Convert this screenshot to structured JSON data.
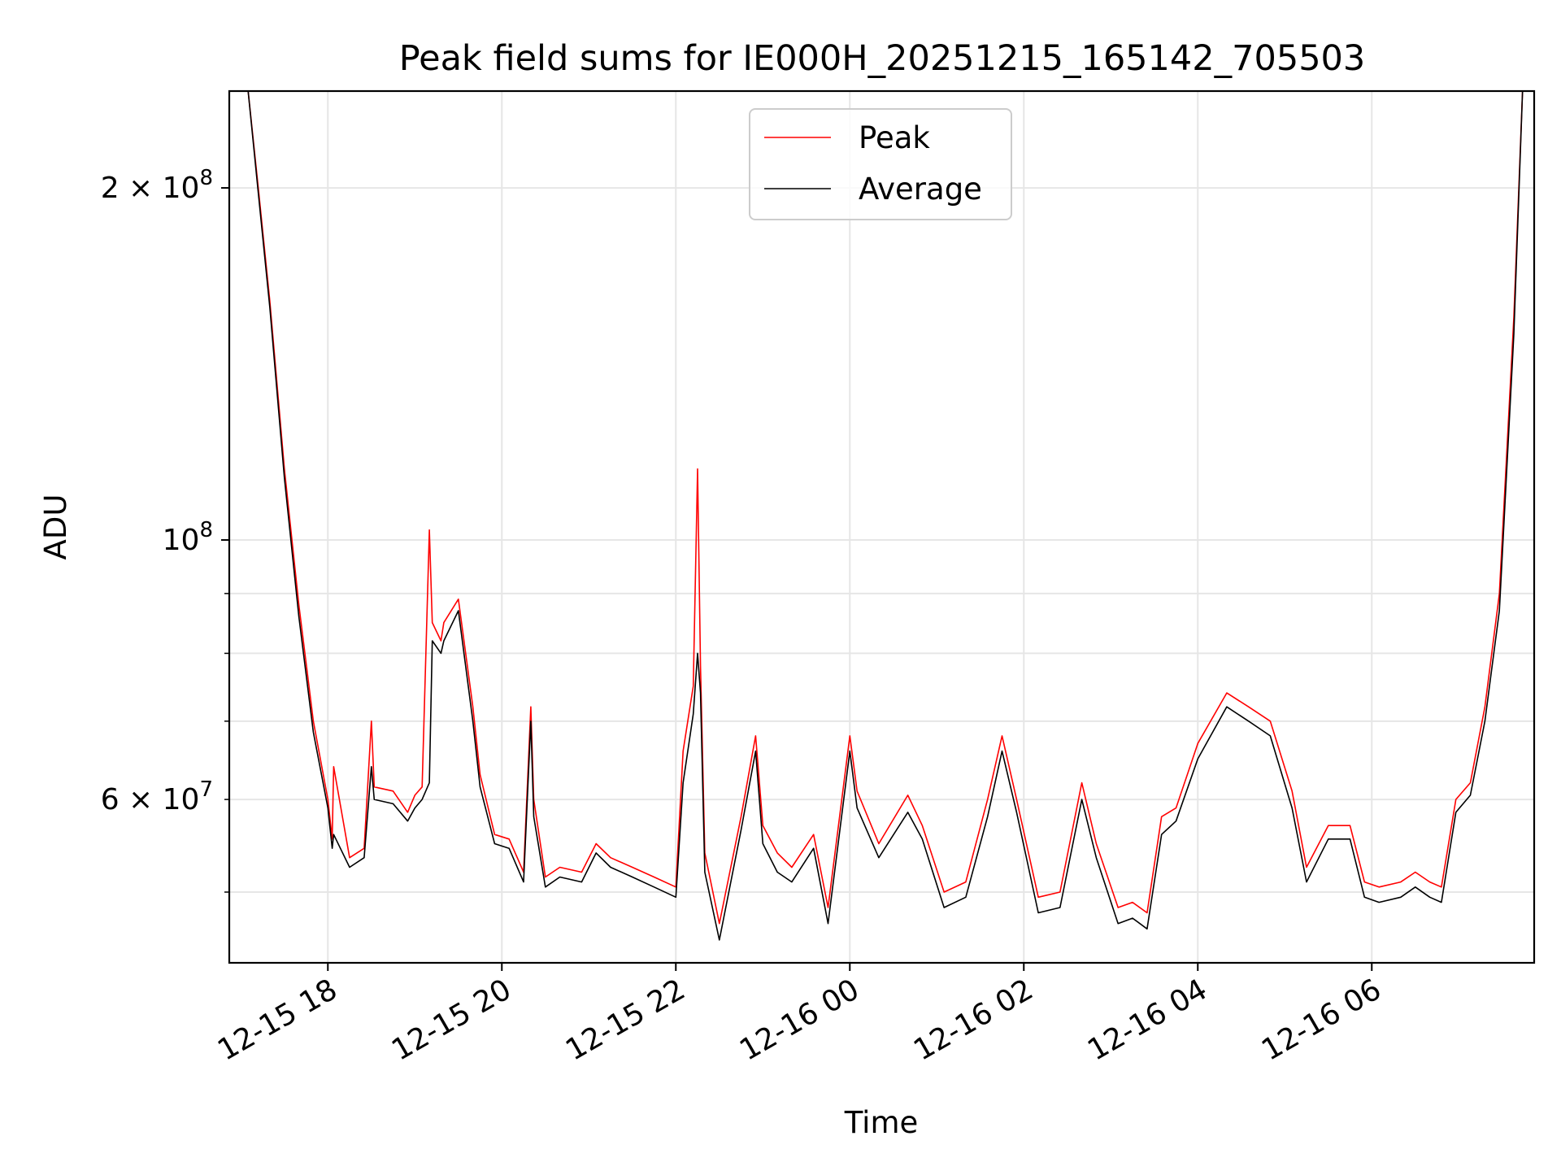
{
  "chart_data": {
    "type": "line",
    "title": "Peak field sums for IE000H_20251215_165142_705503",
    "xlabel": "Time",
    "ylabel": "ADU",
    "y_scale": "log",
    "ylim": [
      43500000,
      242000000
    ],
    "xlim": [
      "2025-12-15 16:52",
      "2025-12-16 07:52"
    ],
    "grid": true,
    "legend_position": "top-center",
    "x_ticks": [
      "12-15 18",
      "12-15 20",
      "12-15 22",
      "12-16 00",
      "12-16 02",
      "12-16 04",
      "12-16 06"
    ],
    "y_ticks_major": [
      {
        "value": 100000000,
        "label_base": "10",
        "label_exp": "8",
        "label_mantissa": ""
      },
      {
        "value": 200000000,
        "label_base": "10",
        "label_exp": "8",
        "label_mantissa": "2 × "
      }
    ],
    "y_ticks_minor": [
      {
        "value": 50000000,
        "label_base": "",
        "label_exp": "",
        "label_mantissa": ""
      },
      {
        "value": 60000000,
        "label_base": "10",
        "label_exp": "7",
        "label_mantissa": "6 × "
      },
      {
        "value": 70000000,
        "label_base": "",
        "label_exp": "",
        "label_mantissa": ""
      },
      {
        "value": 80000000,
        "label_base": "",
        "label_exp": "",
        "label_mantissa": ""
      },
      {
        "value": 90000000,
        "label_base": "",
        "label_exp": "",
        "label_mantissa": ""
      }
    ],
    "series": [
      {
        "name": "Peak",
        "color": "#ff0000",
        "x": [
          "2025-12-15 17:05",
          "2025-12-15 17:12",
          "2025-12-15 17:20",
          "2025-12-15 17:30",
          "2025-12-15 17:40",
          "2025-12-15 17:50",
          "2025-12-15 18:00",
          "2025-12-15 18:03",
          "2025-12-15 18:04",
          "2025-12-15 18:15",
          "2025-12-15 18:25",
          "2025-12-15 18:30",
          "2025-12-15 18:32",
          "2025-12-15 18:45",
          "2025-12-15 18:55",
          "2025-12-15 19:00",
          "2025-12-15 19:05",
          "2025-12-15 19:10",
          "2025-12-15 19:12",
          "2025-12-15 19:18",
          "2025-12-15 19:20",
          "2025-12-15 19:30",
          "2025-12-15 19:40",
          "2025-12-15 19:45",
          "2025-12-15 19:55",
          "2025-12-15 20:05",
          "2025-12-15 20:15",
          "2025-12-15 20:20",
          "2025-12-15 20:22",
          "2025-12-15 20:30",
          "2025-12-15 20:40",
          "2025-12-15 20:55",
          "2025-12-15 21:05",
          "2025-12-15 21:15",
          "2025-12-15 21:30",
          "2025-12-15 21:45",
          "2025-12-15 22:00",
          "2025-12-15 22:05",
          "2025-12-15 22:12",
          "2025-12-15 22:15",
          "2025-12-15 22:17",
          "2025-12-15 22:20",
          "2025-12-15 22:30",
          "2025-12-15 22:45",
          "2025-12-15 22:55",
          "2025-12-15 23:00",
          "2025-12-15 23:10",
          "2025-12-15 23:20",
          "2025-12-15 23:35",
          "2025-12-15 23:45",
          "2025-12-16 00:00",
          "2025-12-16 00:05",
          "2025-12-16 00:20",
          "2025-12-16 00:40",
          "2025-12-16 00:50",
          "2025-12-16 01:05",
          "2025-12-16 01:20",
          "2025-12-16 01:35",
          "2025-12-16 01:45",
          "2025-12-16 01:55",
          "2025-12-16 02:10",
          "2025-12-16 02:25",
          "2025-12-16 02:40",
          "2025-12-16 02:50",
          "2025-12-16 03:05",
          "2025-12-16 03:15",
          "2025-12-16 03:25",
          "2025-12-16 03:35",
          "2025-12-16 03:45",
          "2025-12-16 04:00",
          "2025-12-16 04:20",
          "2025-12-16 04:35",
          "2025-12-16 04:50",
          "2025-12-16 05:05",
          "2025-12-16 05:15",
          "2025-12-16 05:30",
          "2025-12-16 05:45",
          "2025-12-16 05:55",
          "2025-12-16 06:05",
          "2025-12-16 06:20",
          "2025-12-16 06:30",
          "2025-12-16 06:40",
          "2025-12-16 06:48",
          "2025-12-16 06:58",
          "2025-12-16 07:08",
          "2025-12-16 07:18",
          "2025-12-16 07:28",
          "2025-12-16 07:38",
          "2025-12-16 07:44"
        ],
        "y": [
          242000000,
          200000000,
          160000000,
          115000000,
          88000000,
          70000000,
          60000000,
          55500000,
          64000000,
          53500000,
          54500000,
          70000000,
          61500000,
          61000000,
          58500000,
          60500000,
          61500000,
          102000000,
          85000000,
          82000000,
          85000000,
          89000000,
          72000000,
          63000000,
          56000000,
          55500000,
          52000000,
          72000000,
          60000000,
          51500000,
          52500000,
          52000000,
          55000000,
          53500000,
          52500000,
          51500000,
          50500000,
          66000000,
          75000000,
          115000000,
          78000000,
          54000000,
          47000000,
          58000000,
          68000000,
          57000000,
          54000000,
          52500000,
          56000000,
          48500000,
          68000000,
          61000000,
          55000000,
          60500000,
          57000000,
          50000000,
          51000000,
          60000000,
          68000000,
          60000000,
          49500000,
          50000000,
          62000000,
          55000000,
          48500000,
          49000000,
          48000000,
          58000000,
          59000000,
          67000000,
          74000000,
          72000000,
          70000000,
          61000000,
          52500000,
          57000000,
          57000000,
          51000000,
          50500000,
          51000000,
          52000000,
          51000000,
          50500000,
          60000000,
          62000000,
          72000000,
          90000000,
          155000000,
          242000000
        ]
      },
      {
        "name": "Average",
        "color": "#000000",
        "x": [
          "2025-12-15 17:05",
          "2025-12-15 17:12",
          "2025-12-15 17:20",
          "2025-12-15 17:30",
          "2025-12-15 17:40",
          "2025-12-15 17:50",
          "2025-12-15 18:00",
          "2025-12-15 18:03",
          "2025-12-15 18:04",
          "2025-12-15 18:15",
          "2025-12-15 18:25",
          "2025-12-15 18:30",
          "2025-12-15 18:32",
          "2025-12-15 18:45",
          "2025-12-15 18:55",
          "2025-12-15 19:00",
          "2025-12-15 19:05",
          "2025-12-15 19:10",
          "2025-12-15 19:12",
          "2025-12-15 19:18",
          "2025-12-15 19:20",
          "2025-12-15 19:30",
          "2025-12-15 19:40",
          "2025-12-15 19:45",
          "2025-12-15 19:55",
          "2025-12-15 20:05",
          "2025-12-15 20:15",
          "2025-12-15 20:20",
          "2025-12-15 20:22",
          "2025-12-15 20:30",
          "2025-12-15 20:40",
          "2025-12-15 20:55",
          "2025-12-15 21:05",
          "2025-12-15 21:15",
          "2025-12-15 21:30",
          "2025-12-15 21:45",
          "2025-12-15 22:00",
          "2025-12-15 22:05",
          "2025-12-15 22:12",
          "2025-12-15 22:15",
          "2025-12-15 22:17",
          "2025-12-15 22:20",
          "2025-12-15 22:30",
          "2025-12-15 22:45",
          "2025-12-15 22:55",
          "2025-12-15 23:00",
          "2025-12-15 23:10",
          "2025-12-15 23:20",
          "2025-12-15 23:35",
          "2025-12-15 23:45",
          "2025-12-16 00:00",
          "2025-12-16 00:05",
          "2025-12-16 00:20",
          "2025-12-16 00:40",
          "2025-12-16 00:50",
          "2025-12-16 01:05",
          "2025-12-16 01:20",
          "2025-12-16 01:35",
          "2025-12-16 01:45",
          "2025-12-16 01:55",
          "2025-12-16 02:10",
          "2025-12-16 02:25",
          "2025-12-16 02:40",
          "2025-12-16 02:50",
          "2025-12-16 03:05",
          "2025-12-16 03:15",
          "2025-12-16 03:25",
          "2025-12-16 03:35",
          "2025-12-16 03:45",
          "2025-12-16 04:00",
          "2025-12-16 04:20",
          "2025-12-16 04:35",
          "2025-12-16 04:50",
          "2025-12-16 05:05",
          "2025-12-16 05:15",
          "2025-12-16 05:30",
          "2025-12-16 05:45",
          "2025-12-16 05:55",
          "2025-12-16 06:05",
          "2025-12-16 06:20",
          "2025-12-16 06:30",
          "2025-12-16 06:40",
          "2025-12-16 06:48",
          "2025-12-16 06:58",
          "2025-12-16 07:08",
          "2025-12-16 07:18",
          "2025-12-16 07:28",
          "2025-12-16 07:38",
          "2025-12-16 07:44"
        ],
        "y": [
          242000000,
          198000000,
          158000000,
          113000000,
          86000000,
          68500000,
          59000000,
          54500000,
          56000000,
          52500000,
          53500000,
          64000000,
          60000000,
          59500000,
          57500000,
          59000000,
          60000000,
          62000000,
          82000000,
          80000000,
          82000000,
          87000000,
          70000000,
          61500000,
          55000000,
          54500000,
          51000000,
          70000000,
          58000000,
          50500000,
          51500000,
          51000000,
          54000000,
          52500000,
          51500000,
          50500000,
          49500000,
          62000000,
          71000000,
          80000000,
          74000000,
          52000000,
          45500000,
          56500000,
          66000000,
          55000000,
          52000000,
          51000000,
          54500000,
          47000000,
          66000000,
          59000000,
          53500000,
          58500000,
          55500000,
          48500000,
          49500000,
          58000000,
          66000000,
          58500000,
          48000000,
          48500000,
          60000000,
          53500000,
          47000000,
          47500000,
          46500000,
          56000000,
          57500000,
          65000000,
          72000000,
          70000000,
          68000000,
          59000000,
          51000000,
          55500000,
          55500000,
          49500000,
          49000000,
          49500000,
          50500000,
          49500000,
          49000000,
          58500000,
          60500000,
          70000000,
          87000000,
          150000000,
          242000000
        ]
      }
    ]
  }
}
